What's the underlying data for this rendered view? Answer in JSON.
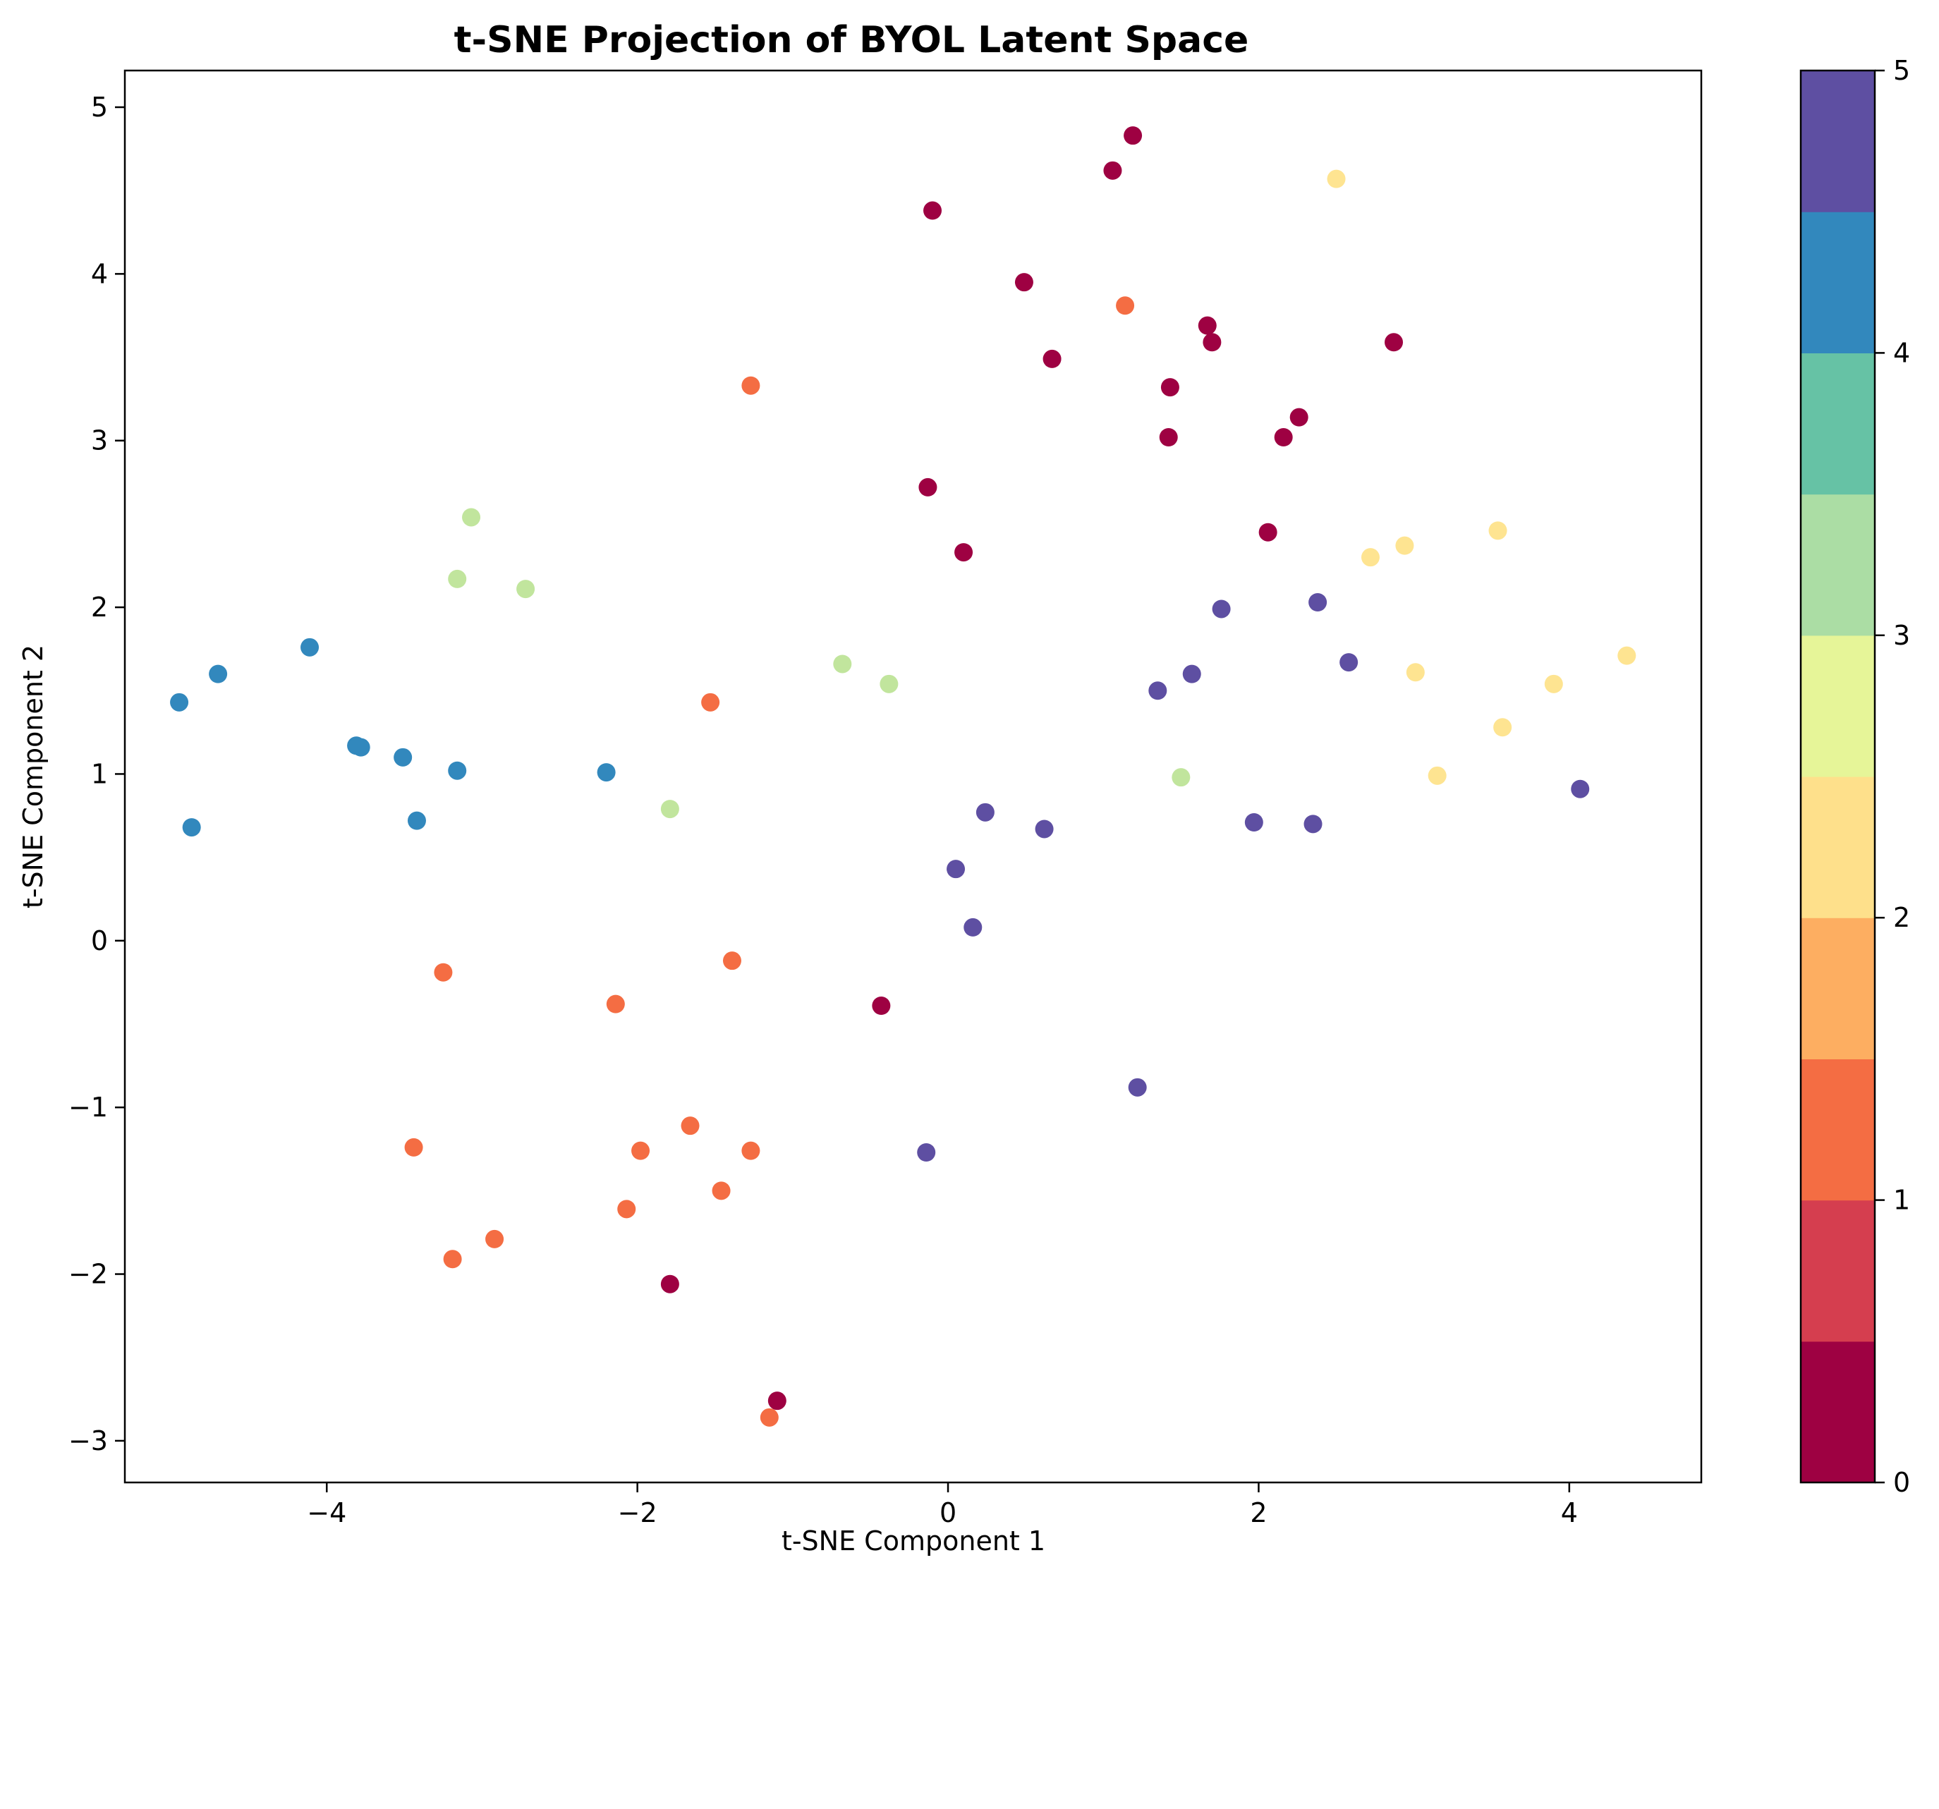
{
  "chart_data": {
    "type": "scatter",
    "title": "t-SNE Projection of BYOL Latent Space",
    "xlabel": "t-SNE Component 1",
    "ylabel": "t-SNE Component 2",
    "xlim": [
      -5.3,
      4.85
    ],
    "ylim": [
      -3.25,
      5.22
    ],
    "xticks": [
      -4,
      -2,
      0,
      2,
      4
    ],
    "yticks": [
      -3,
      -2,
      -1,
      0,
      1,
      2,
      3,
      4,
      5
    ],
    "xtick_labels": [
      "−4",
      "−2",
      "0",
      "2",
      "4"
    ],
    "ytick_labels": [
      "−3",
      "−2",
      "−1",
      "0",
      "1",
      "2",
      "3",
      "4",
      "5"
    ],
    "grid": false,
    "colorbar": {
      "range": [
        0,
        5
      ],
      "ticks": [
        0,
        1,
        2,
        3,
        4,
        5
      ],
      "tick_labels": [
        "0",
        "1",
        "2",
        "3",
        "4",
        "5"
      ],
      "colors": [
        "#9e0142",
        "#d53e4f",
        "#f46d43",
        "#fdae61",
        "#fee08b",
        "#e6f598",
        "#abdda4",
        "#66c2a5",
        "#3288bd",
        "#5e4fa2"
      ]
    },
    "class_colors": {
      "0": "#9e0142",
      "1": "#f46d43",
      "2": "#fee491",
      "3": "#c1e59d",
      "4": "#3288bd",
      "5": "#5e4fa2"
    },
    "points": [
      {
        "x": 1.19,
        "y": 4.83,
        "c": 0
      },
      {
        "x": 1.06,
        "y": 4.62,
        "c": 0
      },
      {
        "x": -0.1,
        "y": 4.38,
        "c": 0
      },
      {
        "x": 0.49,
        "y": 3.95,
        "c": 0
      },
      {
        "x": 1.67,
        "y": 3.69,
        "c": 0
      },
      {
        "x": 1.7,
        "y": 3.59,
        "c": 0
      },
      {
        "x": 2.87,
        "y": 3.59,
        "c": 0
      },
      {
        "x": 0.67,
        "y": 3.49,
        "c": 0
      },
      {
        "x": 1.43,
        "y": 3.32,
        "c": 0
      },
      {
        "x": 2.26,
        "y": 3.14,
        "c": 0
      },
      {
        "x": 1.42,
        "y": 3.02,
        "c": 0
      },
      {
        "x": 2.16,
        "y": 3.02,
        "c": 0
      },
      {
        "x": -0.13,
        "y": 2.72,
        "c": 0
      },
      {
        "x": 2.06,
        "y": 2.45,
        "c": 0
      },
      {
        "x": 0.1,
        "y": 2.33,
        "c": 0
      },
      {
        "x": -0.43,
        "y": -0.39,
        "c": 0
      },
      {
        "x": -1.79,
        "y": -2.06,
        "c": 0
      },
      {
        "x": -1.1,
        "y": -2.76,
        "c": 0
      },
      {
        "x": 1.14,
        "y": 3.81,
        "c": 1
      },
      {
        "x": -1.27,
        "y": 3.33,
        "c": 1
      },
      {
        "x": -1.53,
        "y": 1.43,
        "c": 1
      },
      {
        "x": -1.39,
        "y": -0.12,
        "c": 1
      },
      {
        "x": -3.25,
        "y": -0.19,
        "c": 1
      },
      {
        "x": -2.14,
        "y": -0.38,
        "c": 1
      },
      {
        "x": -1.66,
        "y": -1.11,
        "c": 1
      },
      {
        "x": -3.44,
        "y": -1.24,
        "c": 1
      },
      {
        "x": -1.98,
        "y": -1.26,
        "c": 1
      },
      {
        "x": -1.27,
        "y": -1.26,
        "c": 1
      },
      {
        "x": -1.46,
        "y": -1.5,
        "c": 1
      },
      {
        "x": -2.07,
        "y": -1.61,
        "c": 1
      },
      {
        "x": -2.92,
        "y": -1.79,
        "c": 1
      },
      {
        "x": -3.19,
        "y": -1.91,
        "c": 1
      },
      {
        "x": -1.15,
        "y": -2.86,
        "c": 1
      },
      {
        "x": 2.5,
        "y": 4.57,
        "c": 2
      },
      {
        "x": 3.54,
        "y": 2.46,
        "c": 2
      },
      {
        "x": 2.94,
        "y": 2.37,
        "c": 2
      },
      {
        "x": 2.72,
        "y": 2.3,
        "c": 2
      },
      {
        "x": 4.37,
        "y": 1.71,
        "c": 2
      },
      {
        "x": 3.01,
        "y": 1.61,
        "c": 2
      },
      {
        "x": 3.9,
        "y": 1.54,
        "c": 2
      },
      {
        "x": 3.57,
        "y": 1.28,
        "c": 2
      },
      {
        "x": 3.15,
        "y": 0.99,
        "c": 2
      },
      {
        "x": -3.07,
        "y": 2.54,
        "c": 3
      },
      {
        "x": -3.16,
        "y": 2.17,
        "c": 3
      },
      {
        "x": -2.72,
        "y": 2.11,
        "c": 3
      },
      {
        "x": -0.68,
        "y": 1.66,
        "c": 3
      },
      {
        "x": -0.38,
        "y": 1.54,
        "c": 3
      },
      {
        "x": 1.5,
        "y": 0.98,
        "c": 3
      },
      {
        "x": -1.79,
        "y": 0.79,
        "c": 3
      },
      {
        "x": -4.11,
        "y": 1.76,
        "c": 4
      },
      {
        "x": -4.7,
        "y": 1.6,
        "c": 4
      },
      {
        "x": -4.95,
        "y": 1.43,
        "c": 4
      },
      {
        "x": -3.81,
        "y": 1.17,
        "c": 4
      },
      {
        "x": -3.78,
        "y": 1.16,
        "c": 4
      },
      {
        "x": -3.51,
        "y": 1.1,
        "c": 4
      },
      {
        "x": -3.16,
        "y": 1.02,
        "c": 4
      },
      {
        "x": -2.2,
        "y": 1.01,
        "c": 4
      },
      {
        "x": -3.42,
        "y": 0.72,
        "c": 4
      },
      {
        "x": -4.87,
        "y": 0.68,
        "c": 4
      },
      {
        "x": 2.38,
        "y": 2.03,
        "c": 5
      },
      {
        "x": 1.76,
        "y": 1.99,
        "c": 5
      },
      {
        "x": 2.58,
        "y": 1.67,
        "c": 5
      },
      {
        "x": 1.57,
        "y": 1.6,
        "c": 5
      },
      {
        "x": 1.35,
        "y": 1.5,
        "c": 5
      },
      {
        "x": 4.07,
        "y": 0.91,
        "c": 5
      },
      {
        "x": 0.24,
        "y": 0.77,
        "c": 5
      },
      {
        "x": 1.97,
        "y": 0.71,
        "c": 5
      },
      {
        "x": 2.35,
        "y": 0.7,
        "c": 5
      },
      {
        "x": 0.62,
        "y": 0.67,
        "c": 5
      },
      {
        "x": 0.05,
        "y": 0.43,
        "c": 5
      },
      {
        "x": 0.16,
        "y": 0.08,
        "c": 5
      },
      {
        "x": 1.22,
        "y": -0.88,
        "c": 5
      },
      {
        "x": -0.14,
        "y": -1.27,
        "c": 5
      }
    ]
  }
}
